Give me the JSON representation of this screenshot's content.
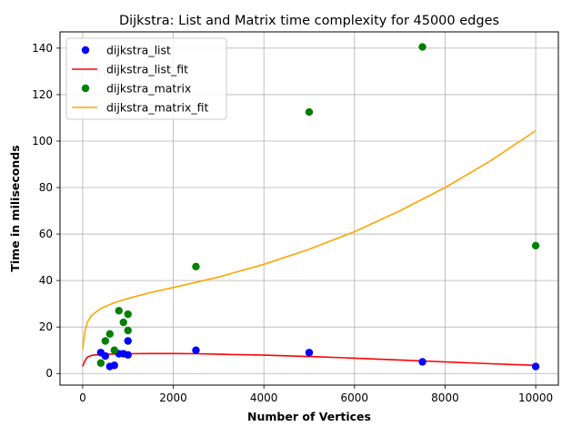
{
  "chart_data": {
    "type": "scatter",
    "title": "Dijkstra: List and Matrix time complexity for 45000 edges",
    "xlabel": "Number of Vertices",
    "ylabel": "Time in miliseconds",
    "xlim": [
      -500,
      10500
    ],
    "ylim": [
      -5,
      147
    ],
    "xticks": [
      0,
      2000,
      4000,
      6000,
      8000,
      10000
    ],
    "yticks": [
      0,
      20,
      40,
      60,
      80,
      100,
      120,
      140
    ],
    "grid": true,
    "legend_position": "top-left",
    "series": [
      {
        "name": "dijkstra_list",
        "kind": "scatter",
        "color": "#0000ff",
        "x": [
          400,
          500,
          600,
          700,
          800,
          900,
          1000,
          1000,
          2500,
          5000,
          7500,
          10000
        ],
        "y": [
          9,
          7.5,
          3,
          3.5,
          8.5,
          8.5,
          14,
          8,
          10,
          9,
          5,
          3
        ]
      },
      {
        "name": "dijkstra_list_fit",
        "kind": "line",
        "color": "#ff0000",
        "x": [
          0,
          50,
          100,
          200,
          400,
          700,
          1000,
          1500,
          2000,
          2500,
          3000,
          4000,
          5000,
          6000,
          7000,
          8000,
          9000,
          10000
        ],
        "y": [
          3,
          5.5,
          7,
          7.8,
          8.2,
          8.4,
          8.5,
          8.6,
          8.6,
          8.5,
          8.3,
          7.9,
          7.3,
          6.6,
          5.8,
          5,
          4.2,
          3.5
        ]
      },
      {
        "name": "dijkstra_matrix",
        "kind": "scatter",
        "color": "#008000",
        "x": [
          400,
          500,
          600,
          700,
          800,
          900,
          1000,
          1000,
          2500,
          5000,
          7500,
          10000
        ],
        "y": [
          4.5,
          14,
          17,
          10,
          27,
          22,
          25.5,
          18.5,
          46,
          112.5,
          140.5,
          55
        ]
      },
      {
        "name": "dijkstra_matrix_fit",
        "kind": "line",
        "color": "#ffa500",
        "x": [
          0,
          50,
          100,
          200,
          400,
          700,
          1000,
          1500,
          2000,
          3000,
          4000,
          5000,
          6000,
          7000,
          8000,
          9000,
          10000
        ],
        "y": [
          10.5,
          18,
          22,
          25,
          28,
          30.5,
          32.3,
          34.8,
          37,
          41.5,
          47,
          53.5,
          61,
          70,
          80,
          91.5,
          104.5
        ]
      }
    ]
  }
}
